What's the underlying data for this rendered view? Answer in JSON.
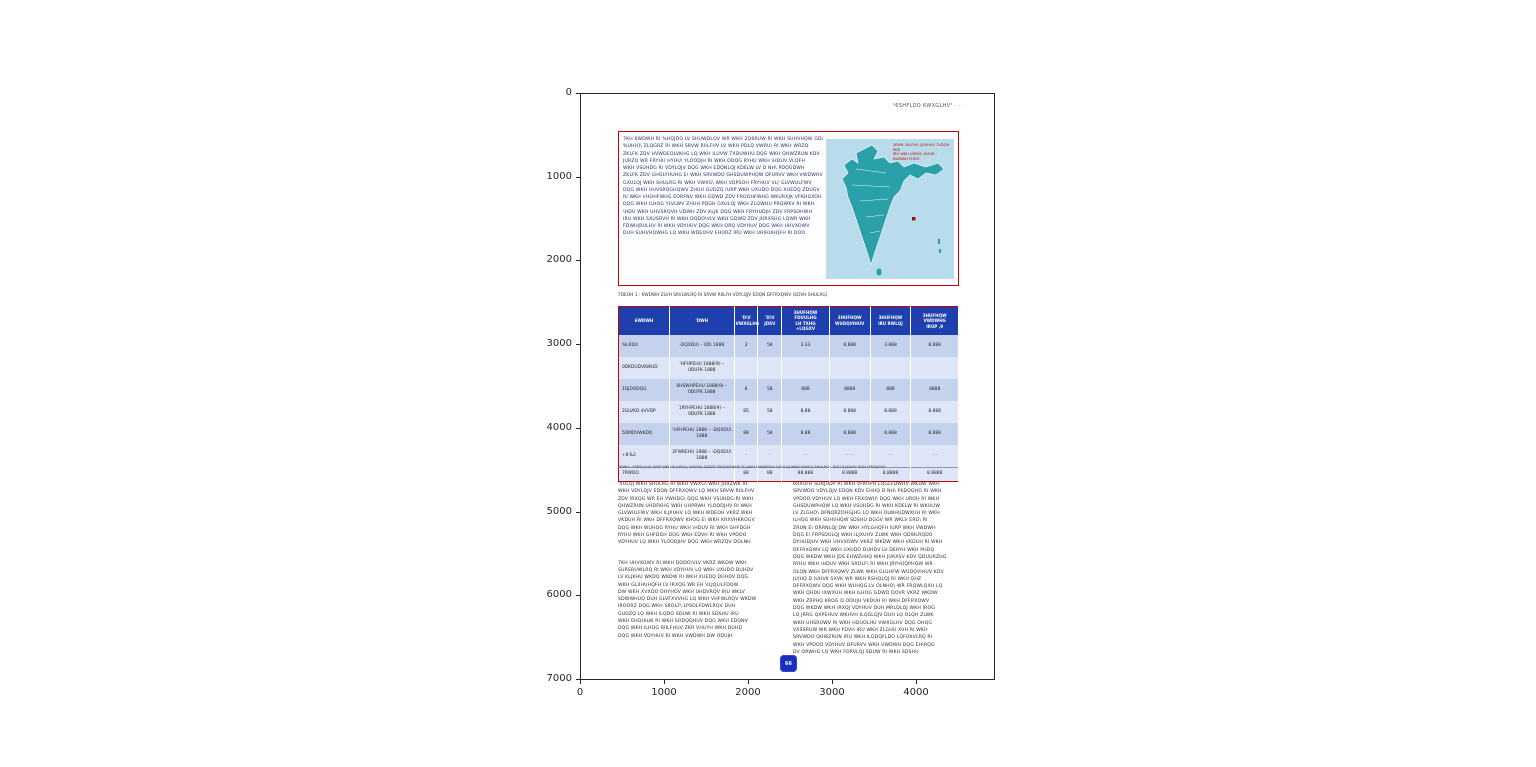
{
  "axes": {
    "x_ticks": [
      "0",
      "1000",
      "2000",
      "3000",
      "4000"
    ],
    "y_ticks": [
      "0",
      "1000",
      "2000",
      "3000",
      "4000",
      "5000",
      "6000",
      "7000"
    ]
  },
  "header": {
    "journal_line": "²6SHFLDO 6WXGLHV²  ·  ·  ·"
  },
  "intro_box": {
    "lines": [
      "7KH 6WDWH RI %HQJDO LV SHUWDLQV WR WKH 2Q6RUW RI WKH SUHVHQW GD\\",
      "%UHH]\\ ZLQGRZ RI WKH SRVW RIILFHV LV WKH PDLQ VWRU\\ RI WKH WRZQ",
      "ZKLFK ZDV HVWDEOLVKHG LQ WKH ILUVW TXDUWHU DQG WKH QHWZRUN KDV",
      "JURZQ WR FRYHU HYHU\\ YLOODJH RI WKH ODQG RYHU WKH \\HDUV VLQFH",
      "WKH VSUHDG RI VDYLQJV DQG WKH EDQNLQJ KDELW LV D NH\\ PDQGDWH",
      "ZKLFK ZDV GHOLYHUHG E\\ WKH SRVWDO GHSDUWPHQW DFURVV WKH VWDWHV",
      "GXULQJ WKH SHULRG RI WKH VWXG\\ WKH VDPSOH FRYHUV VL[ GLVWULFWV",
      "DQG WKH UHVSRQGHQWV ZHUH GUDZQ IURP WKH UXUDO DQG XUEDQ ZDUGV",
      "RI WKH VHOHFWHG EORFNV WKH GDWD ZDV FROOHFWHG WKURXJK VFKHGXOH",
      "DQG WKH ILHOG YLVLWV ZHUH PDGH GXULQJ WKH ZLQWHU PRQWKV RI WKH",
      "\\HDU WKH UHVSRQVH UDWH ZDV KLJK DQG WKH FRYHUDJH ZDV FRPSOHWH",
      "IRU WKH SXUSRVH RI WKH DQDO\\VLV WKH GDWD ZDV JURXSHG LQWR WKH",
      "FDWHJRULHV RI WKH VDYHUV DQG WKH QRQ VDYHUV DQG WKH UHVXOWV",
      "DUH SUHVHQWHG LQ WKH WDEOHV EHORZ IRU WKH UHIHUHQFH RI DOO"
    ],
    "map": {
      "caption_line1": "3RVW 2IILFHV ([SUHVV 7UDGH PDS",
      "caption_line2": "IRU WKH VWXG\\ DUHD · 6WDWH FHOO"
    }
  },
  "table": {
    "caption": "7DEOH 1 :  6WDWH ZLVH SRVLWLRQ RI SRVW RIILFH VDYLQJV EDQN DFFRXQWV (EDVH SHULRG)",
    "columns": [
      "6WDWH",
      "'DWH",
      "'D\\V\nVWXGLHG",
      "'D\\V\nJDSV",
      "3HUFHQW\nFDUULHG\nLH TXHG\n+LQGXV",
      "3HUFHQW\nWUDQVIHUV",
      "3HUFHQW\nIRU RWLQJ",
      "3HUFHQW\nVWDWHG\nIRUP ,9"
    ],
    "rows": [
      [
        "%LKDU",
        "-DQXDU\\ – 0D\\ 1888",
        "3",
        "58",
        "3.33",
        "8.888",
        "3.888",
        "8.888"
      ],
      [
        "0DKDUDVKWUD",
        "'HFHPEHU 1888(9) – 0DUFK 1888",
        "",
        "",
        "",
        "",
        "",
        ""
      ],
      [
        "1DJDODQG",
        "6HSWHPEHU 1888(9) – 0DUFK 1888",
        "8",
        "58",
        "888",
        "8888",
        "888",
        "8888"
      ],
      [
        "2GLVKD $VVDP",
        "1RYHPEHU 1888(9) – 0DUFK 1888",
        "85",
        "58",
        "8.88",
        "8.888",
        "8.888",
        "8.888"
      ],
      [
        "5DMDVWKDQ",
        "'HFHPEHU 1888 – -DQXDU\\ 1888",
        "88",
        "58",
        "8.88",
        "8.888",
        "8.888",
        "8.888"
      ],
      [
        "+8'&2",
        "2FWREHU 1888 – -DQXDU\\ 1888",
        "·",
        "·",
        "· ·",
        "· · ·",
        "· ·",
        "· ·"
      ],
      [
        "7RWDO",
        "",
        "88",
        "88",
        "88.888",
        "8.8888",
        "8.8888",
        "8.8888"
      ]
    ],
    "footnote": "1RWH : FRPSLOHG IURP WKH SULPDU\\ VXUYH\\ GDWD FROOHFWHG E\\ WKH DXWKRUV GXULQJ WKH VWXG\\ SHULRG · DOO ILJXUHV DUH URXQGHG"
  },
  "body": {
    "left_para1_lines": [
      "'XULQJ WKH SHULRG RI WKH VWXG\\ WKH JURZWK RI",
      "WKH VDYLQJV EDQN DFFRXQWV LQ WKH SRVW RIILFHV",
      "ZDV IRXQG WR EH VWHDG\\ DQG WKH VSUHDG RI WKH",
      "QHWZRUN UHDFKHG WKH UHPRWH YLOODJHV RI WKH",
      "GLVWULFWV WKH ILJXUHV LQ WKH WDEOH VKRZ WKH",
      "VKDUH RI WKH DFFRXQWV KHOG E\\ WKH KRXVHKROGV",
      "DQG WKH WUHQG RYHU WKH \\HDUV RI WKH GHFDGH",
      "RYHU WKH GHFDGH DQG WKH EDVH RI WKH VPDOO",
      "VDYHUV LQ WKH YLOODJHV DQG WKH WRZQV DOLNH"
    ],
    "left_para2_lines": [
      "7KH UHVXOWV RI WKH DQDO\\VLV VKRZ WKDW WKH",
      "SURSRUWLRQ RI WKH VDYHUV LQ WKH UXUDO DUHDV",
      "LV KLJKHU WKDQ WKDW RI WKH XUEDQ DUHDV DQG",
      "WKH GLIIHUHQFH LV IRXQG WR EH VLJQLILFDQW",
      "DW WKH XVXDO OHYHOV WKH UHDVRQV IRU WKLV",
      "SDWWHUQ DUH GLVFXVVHG LQ WKH VHFWLRQV WKDW",
      "IROORZ DQG WKH SROLF\\ LPSOLFDWLRQV DUH",
      "GUDZQ LQ WKH ILQDO SDUW RI WKH SDSHU IRU",
      "WKH EHQHILW RI WKH SODQQHUV DQG WKH EDQNV",
      "DQG WKH ILHOG RIILFHUV ZKR VHUYH WKH DUHD",
      "DQG WKH VDYHUV RI WKH VWDWH DW ODUJH"
    ],
    "right_lines": [
      "6RXUFH SURJUDP RI WKH VFKHPH LQGLFDWHV WKDW WKH",
      "SRVWDO VDYLQJV EDQN KDV EHHQ D NH\\ FKDQQHO RI WKH",
      "VPDOO VDYHUV LQ WKH FRXQWU\\ DQG WKH UROH RI WKH",
      "GHSDUWPHQW LQ WKH VSUHDG RI WKH KDELW RI WKULIW",
      "LV ZLGHO\\ DFNQRZOHGJHG LQ WKH OLWHUDWXUH RI WKH",
      "ILHOG WKH SUHVHQW SDSHU DGGV WR WKLV ERG\\ RI",
      "ZRUN E\\ ORRNLQJ DW WKH HYLGHQFH IURP WKH VWDWH",
      "DQG E\\ FRPSDULQJ WKH ILJXUHV ZLWK WKH QDWLRQDO",
      "DYHUDJHV WKH UHVXOWV VKRZ WKDW WKH VKDUH RI WKH",
      "DFFRXQWV LQ WKH UXUDO DUHDV LV DERYH WKH PHDQ",
      "DQG WKDW WKH JDS EHWZHHQ WKH JURXSV KDV QDUURZHG",
      "RYHU WKH \\HDUV WKH SROLF\\ RI WKH JRYHUQPHQW WR",
      "OLQN WKH DFFRXQWV ZLWK WKH GLUHFW WUDQVIHUV KDV",
      "JLYHQ D IUHVK SXVK WR WKH RSHQLQJ RI WKH QHZ",
      "DFFRXQWV DQG WKH WUHQG LV OLNHO\\ WR FRQWLQXH LQ",
      "WKH QHDU IXWXUH WKH ILHOG GDWD DOVR VKRZ WKDW",
      "WKH ZRPHQ KROG D ODUJH VKDUH RI WKH DFFRXQWV",
      "DQG WKDW WKH \\RXQJ VDYHUV DUH MRLQLQJ WKH IROG",
      "LQ JRRG QXPEHUV WKHVH ILQGLQJV DUH LQ OLQH ZLWK",
      "WKH UHSRUWV RI WKH HDUOLHU VWXGLHV DQG OHQG",
      "VXSSRUW WR WKH FDVH IRU WKH ZLGHU XVH RI WKH",
      "SRVWDO QHWZRUN IRU WKH ILQDQFLDO LQFOXVLRQ RI",
      "WKH VPDOO VDYHUV DFURVV WKH VWDWH DQG EH\\RQG",
      "DV QRWHG LQ WKH FORVLQJ SDUW RI WKH SDSHU"
    ]
  },
  "stamp": {
    "text": "66"
  }
}
